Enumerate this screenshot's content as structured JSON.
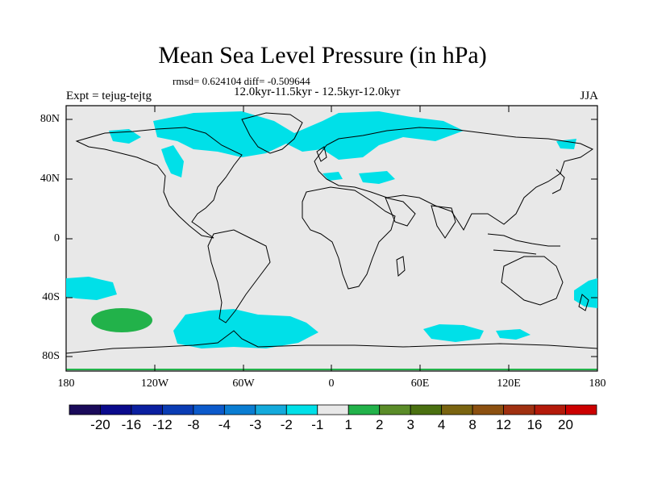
{
  "title": "Mean Sea Level Pressure (in hPa)",
  "stats": "rmsd= 0.624104 diff= -0.509644",
  "period": "12.0kyr-11.5kyr - 12.5kyr-12.0kyr",
  "experiment": "Expt = tejug-tejtg",
  "season": "JJA",
  "lat_ticks": [
    "80N",
    "40N",
    "0",
    "40S",
    "80S"
  ],
  "lon_ticks": [
    "180",
    "120W",
    "60W",
    "0",
    "60E",
    "120E",
    "180"
  ],
  "colorbar": {
    "labels": [
      "-20",
      "-16",
      "-12",
      "-8",
      "-4",
      "-3",
      "-2",
      "-1",
      "1",
      "2",
      "3",
      "4",
      "8",
      "12",
      "16",
      "20"
    ],
    "colors": [
      "#1a0a5a",
      "#0a0a8c",
      "#0a1fa0",
      "#0a3cb4",
      "#0c5acb",
      "#0a7dd2",
      "#14aadc",
      "#00e0e8",
      "#e8e8e8",
      "#22b24a",
      "#5a8c28",
      "#4a7010",
      "#7a6410",
      "#8c5010",
      "#a03010",
      "#b41a0a",
      "#cc0000"
    ]
  },
  "colors": {
    "land_ocean_fill": "#e8e8e8",
    "negative_anomaly": "#00e0e8",
    "positive_anomaly": "#22b24a"
  }
}
